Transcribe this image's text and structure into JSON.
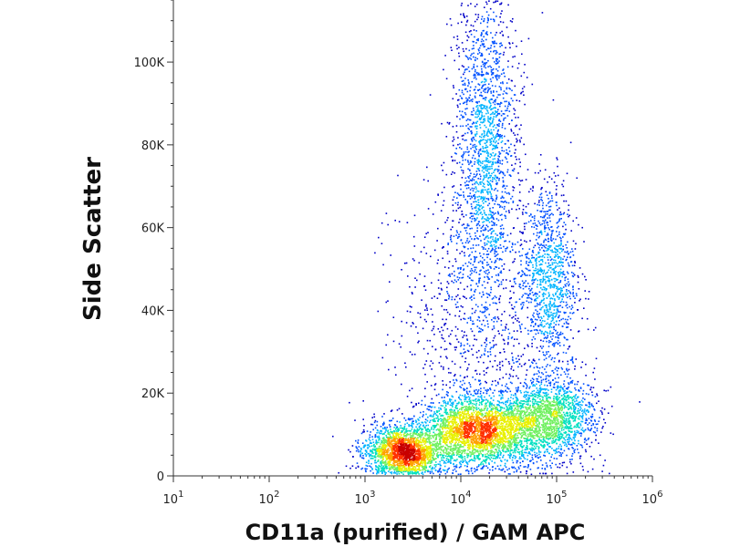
{
  "chart_data": {
    "type": "scatter",
    "title": "",
    "xlabel": "CD11a (purified) / GAM APC",
    "ylabel": "Side Scatter",
    "x_scale": "log",
    "xlim": [
      10,
      1000000
    ],
    "ylim": [
      0,
      115000
    ],
    "x_ticks": [
      {
        "value": 10,
        "base": "10",
        "exp": "1"
      },
      {
        "value": 100,
        "base": "10",
        "exp": "2"
      },
      {
        "value": 1000,
        "base": "10",
        "exp": "3"
      },
      {
        "value": 10000,
        "base": "10",
        "exp": "4"
      },
      {
        "value": 100000,
        "base": "10",
        "exp": "5"
      },
      {
        "value": 1000000,
        "base": "10",
        "exp": "6"
      }
    ],
    "y_ticks": [
      {
        "value": 0,
        "label": "0"
      },
      {
        "value": 20000,
        "label": "20K"
      },
      {
        "value": 40000,
        "label": "40K"
      },
      {
        "value": 60000,
        "label": "60K"
      },
      {
        "value": 80000,
        "label": "80K"
      },
      {
        "value": 100000,
        "label": "100K"
      }
    ],
    "grid": false,
    "density_colors": [
      "#0000c8",
      "#0050ff",
      "#00b4ff",
      "#00e0c0",
      "#70f060",
      "#e8f000",
      "#ffa000",
      "#ff3000",
      "#c80000"
    ],
    "populations": [
      {
        "name": "",
        "x_center": 2500,
        "x_spread_log": 0.2,
        "y_center": 6000,
        "y_spread": 3000,
        "weight": 3500
      },
      {
        "name": "",
        "x_center": 15000,
        "x_spread_log": 0.3,
        "y_center": 11000,
        "y_spread": 4000,
        "weight": 5500
      },
      {
        "name": "",
        "x_center": 80000,
        "x_spread_log": 0.25,
        "y_center": 14000,
        "y_spread": 5000,
        "weight": 3000
      },
      {
        "name": "",
        "x_center": 18000,
        "x_spread_log": 0.16,
        "y_center": 80000,
        "y_spread": 20000,
        "weight": 3000
      },
      {
        "name": "",
        "x_center": 80000,
        "x_spread_log": 0.15,
        "y_center": 48000,
        "y_spread": 12000,
        "weight": 1800
      },
      {
        "name": "",
        "x_center": 12000,
        "x_spread_log": 0.4,
        "y_center": 35000,
        "y_spread": 18000,
        "weight": 1500
      }
    ]
  }
}
